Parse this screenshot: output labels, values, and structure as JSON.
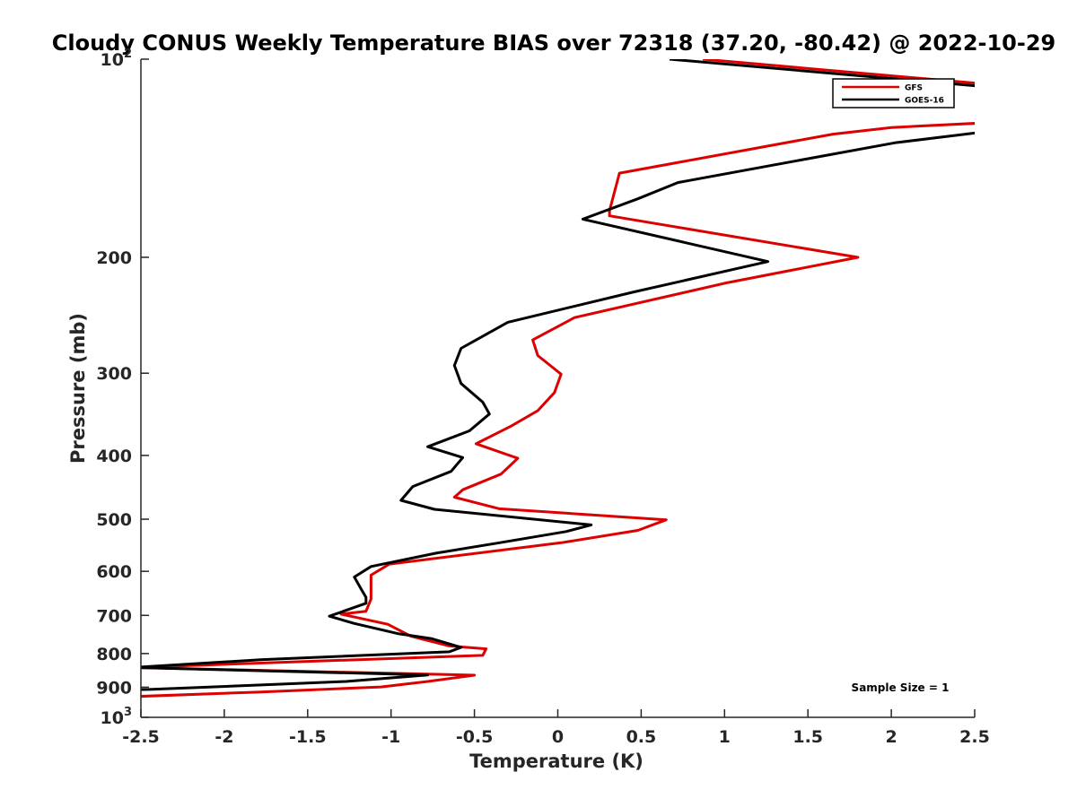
{
  "chart_data": {
    "type": "line",
    "title": "Cloudy CONUS Weekly Temperature BIAS over 72318 (37.20, -80.42) @ 2022-10-29",
    "xlabel": "Temperature (K)",
    "ylabel": "Pressure (mb)",
    "xlim": [
      -2.5,
      2.5
    ],
    "ylim": [
      100,
      1000
    ],
    "y_scale": "log",
    "y_reversed": true,
    "x_ticks": [
      "-2.5",
      "-2",
      "-1.5",
      "-1",
      "-0.5",
      "0",
      "0.5",
      "1",
      "1.5",
      "2",
      "2.5"
    ],
    "y_ticks": [
      {
        "value": 100,
        "label": "10",
        "exp": "2"
      },
      {
        "value": 200,
        "label": "200"
      },
      {
        "value": 300,
        "label": "300"
      },
      {
        "value": 400,
        "label": "400"
      },
      {
        "value": 500,
        "label": "500"
      },
      {
        "value": 600,
        "label": "600"
      },
      {
        "value": 700,
        "label": "700"
      },
      {
        "value": 800,
        "label": "800"
      },
      {
        "value": 900,
        "label": "900"
      },
      {
        "value": 1000,
        "label": "10",
        "exp": "3"
      }
    ],
    "legend_position": "top-right",
    "annotation": "Sample Size = 1",
    "series": [
      {
        "name": "GFS",
        "color": "#dd0000",
        "points": [
          [
            0.87,
            100
          ],
          [
            2.55,
            109
          ],
          [
            2.55,
            125
          ],
          [
            2.0,
            127
          ],
          [
            1.65,
            130
          ],
          [
            0.37,
            149
          ],
          [
            0.31,
            170
          ],
          [
            0.31,
            173
          ],
          [
            1.8,
            200
          ],
          [
            1.0,
            219
          ],
          [
            0.1,
            247
          ],
          [
            -0.15,
            267
          ],
          [
            -0.12,
            282
          ],
          [
            0.02,
            301
          ],
          [
            -0.02,
            321
          ],
          [
            -0.12,
            342
          ],
          [
            -0.28,
            361
          ],
          [
            -0.49,
            384
          ],
          [
            -0.24,
            404
          ],
          [
            -0.34,
            427
          ],
          [
            -0.57,
            451
          ],
          [
            -0.62,
            463
          ],
          [
            -0.35,
            482
          ],
          [
            0.65,
            501
          ],
          [
            0.48,
            520
          ],
          [
            0.02,
            543
          ],
          [
            -1.01,
            585
          ],
          [
            -1.12,
            608
          ],
          [
            -1.12,
            661
          ],
          [
            -1.15,
            690
          ],
          [
            -1.3,
            697
          ],
          [
            -1.02,
            722
          ],
          [
            -0.88,
            753
          ],
          [
            -0.65,
            779
          ],
          [
            -0.43,
            787
          ],
          [
            -0.45,
            805
          ],
          [
            -2.55,
            840
          ],
          [
            -0.5,
            863
          ],
          [
            -0.78,
            882
          ],
          [
            -1.06,
            899
          ],
          [
            -1.78,
            915
          ],
          [
            -2.55,
            930
          ]
        ]
      },
      {
        "name": "GOES-16",
        "color": "#000000",
        "points": [
          [
            0.67,
            100
          ],
          [
            2.55,
            110
          ],
          [
            2.55,
            129
          ],
          [
            2.02,
            134
          ],
          [
            0.72,
            154
          ],
          [
            0.48,
            163
          ],
          [
            0.15,
            175
          ],
          [
            1.26,
            203
          ],
          [
            0.45,
            226
          ],
          [
            -0.3,
            251
          ],
          [
            -0.58,
            275
          ],
          [
            -0.62,
            292
          ],
          [
            -0.58,
            311
          ],
          [
            -0.45,
            332
          ],
          [
            -0.41,
            346
          ],
          [
            -0.53,
            367
          ],
          [
            -0.78,
            388
          ],
          [
            -0.57,
            403
          ],
          [
            -0.64,
            423
          ],
          [
            -0.87,
            446
          ],
          [
            -0.94,
            468
          ],
          [
            -0.74,
            483
          ],
          [
            0.2,
            510
          ],
          [
            0.05,
            522
          ],
          [
            -0.35,
            543
          ],
          [
            -0.73,
            563
          ],
          [
            -1.12,
            590
          ],
          [
            -1.22,
            612
          ],
          [
            -1.18,
            638
          ],
          [
            -1.15,
            657
          ],
          [
            -1.15,
            671
          ],
          [
            -1.37,
            702
          ],
          [
            -1.22,
            720
          ],
          [
            -0.96,
            746
          ],
          [
            -0.76,
            759
          ],
          [
            -0.58,
            783
          ],
          [
            -0.65,
            795
          ],
          [
            -1.77,
            817
          ],
          [
            -2.55,
            840
          ],
          [
            -0.78,
            862
          ],
          [
            -1.27,
            882
          ],
          [
            -1.78,
            893
          ],
          [
            -2.45,
            907
          ],
          [
            -2.55,
            908
          ]
        ]
      }
    ]
  }
}
